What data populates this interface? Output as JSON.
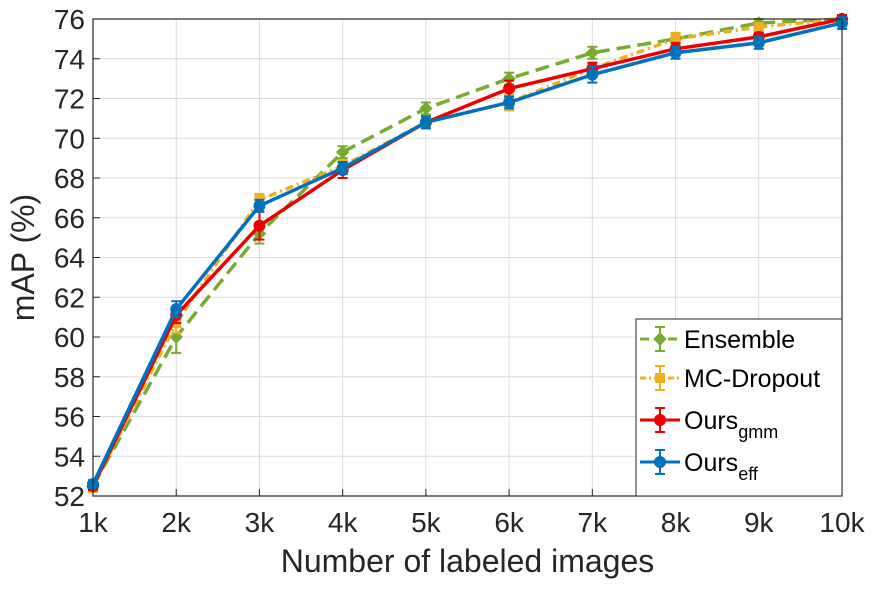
{
  "chart_data": {
    "type": "line",
    "title": "",
    "xlabel": "Number of labeled images",
    "ylabel": "mAP (%)",
    "categories": [
      "1k",
      "2k",
      "3k",
      "4k",
      "5k",
      "6k",
      "7k",
      "8k",
      "9k",
      "10k"
    ],
    "ylim": [
      52,
      76
    ],
    "yticks": [
      52,
      54,
      56,
      58,
      60,
      62,
      64,
      66,
      68,
      70,
      72,
      74,
      76
    ],
    "grid": true,
    "legend_position": "bottom-right",
    "series": [
      {
        "name": "Ensemble",
        "legend_main": "Ensemble",
        "legend_sub": "",
        "color": "#77ac30",
        "dash": "14,7",
        "marker": "diamond",
        "values": [
          52.5,
          60.0,
          65.2,
          69.3,
          71.5,
          73.0,
          74.3,
          75.0,
          75.8,
          76.0
        ],
        "errors": [
          0.2,
          0.8,
          0.5,
          0.3,
          0.3,
          0.3,
          0.3,
          0.3,
          0.2,
          0.2
        ]
      },
      {
        "name": "MC-Dropout",
        "legend_main": "MC-Dropout",
        "legend_sub": "",
        "color": "#edb120",
        "dash": "8,4,2,4",
        "marker": "square",
        "values": [
          52.5,
          60.7,
          66.9,
          68.6,
          70.8,
          71.8,
          73.5,
          75.0,
          75.6,
          76.0
        ],
        "errors": [
          0.3,
          0.5,
          0.3,
          0.3,
          0.3,
          0.4,
          0.3,
          0.3,
          0.2,
          0.2
        ]
      },
      {
        "name": "Ours_gmm",
        "legend_main": "Ours",
        "legend_sub": "gmm",
        "color": "#ee0000",
        "dash": "",
        "marker": "circle",
        "values": [
          52.5,
          61.1,
          65.6,
          68.4,
          70.8,
          72.5,
          73.5,
          74.5,
          75.1,
          76.0
        ],
        "errors": [
          0.2,
          0.4,
          0.7,
          0.4,
          0.3,
          0.4,
          0.3,
          0.3,
          0.2,
          0.2
        ]
      },
      {
        "name": "Ours_eff",
        "legend_main": "Ours",
        "legend_sub": "eff",
        "color": "#0072bd",
        "dash": "",
        "marker": "circle",
        "values": [
          52.6,
          61.4,
          66.6,
          68.5,
          70.8,
          71.8,
          73.2,
          74.3,
          74.8,
          75.8
        ],
        "errors": [
          0.2,
          0.4,
          0.3,
          0.3,
          0.3,
          0.3,
          0.4,
          0.3,
          0.3,
          0.3
        ]
      }
    ]
  }
}
